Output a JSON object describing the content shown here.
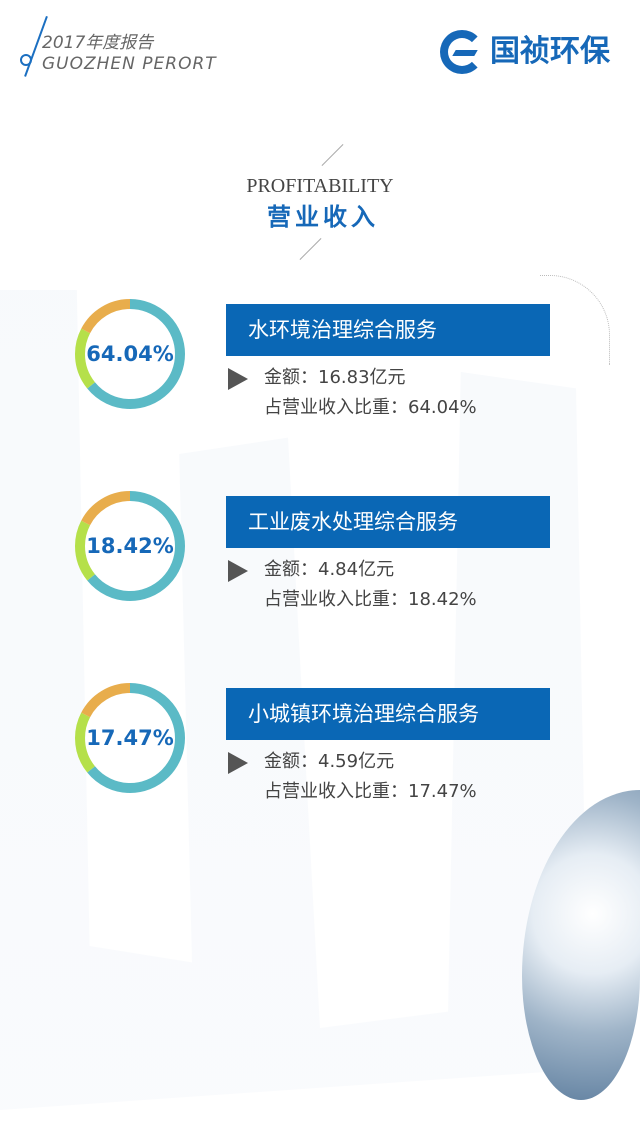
{
  "header": {
    "year_title": "2017年度报告",
    "subtitle": "GUOZHEN PERORT",
    "logo_text": "国祯环保"
  },
  "section": {
    "title_en": "PROFITABILITY",
    "title_cn": "营业收入"
  },
  "colors": {
    "brand": "#0a67b5",
    "ring_main": "#5bbac6",
    "ring_second": "#b5e04a",
    "ring_third": "#e8ad4c"
  },
  "ring_shares": [
    64.04,
    18.42,
    17.47
  ],
  "items": [
    {
      "percent": "64.04%",
      "name": "水环境治理综合服务",
      "amount": "金额：16.83亿元",
      "share": "占营业收入比重：64.04%"
    },
    {
      "percent": "18.42%",
      "name": "工业废水处理综合服务",
      "amount": "金额：4.84亿元",
      "share": "占营业收入比重：18.42%"
    },
    {
      "percent": "17.47%",
      "name": "小城镇环境治理综合服务",
      "amount": "金额：4.59亿元",
      "share": "占营业收入比重：17.47%"
    }
  ]
}
